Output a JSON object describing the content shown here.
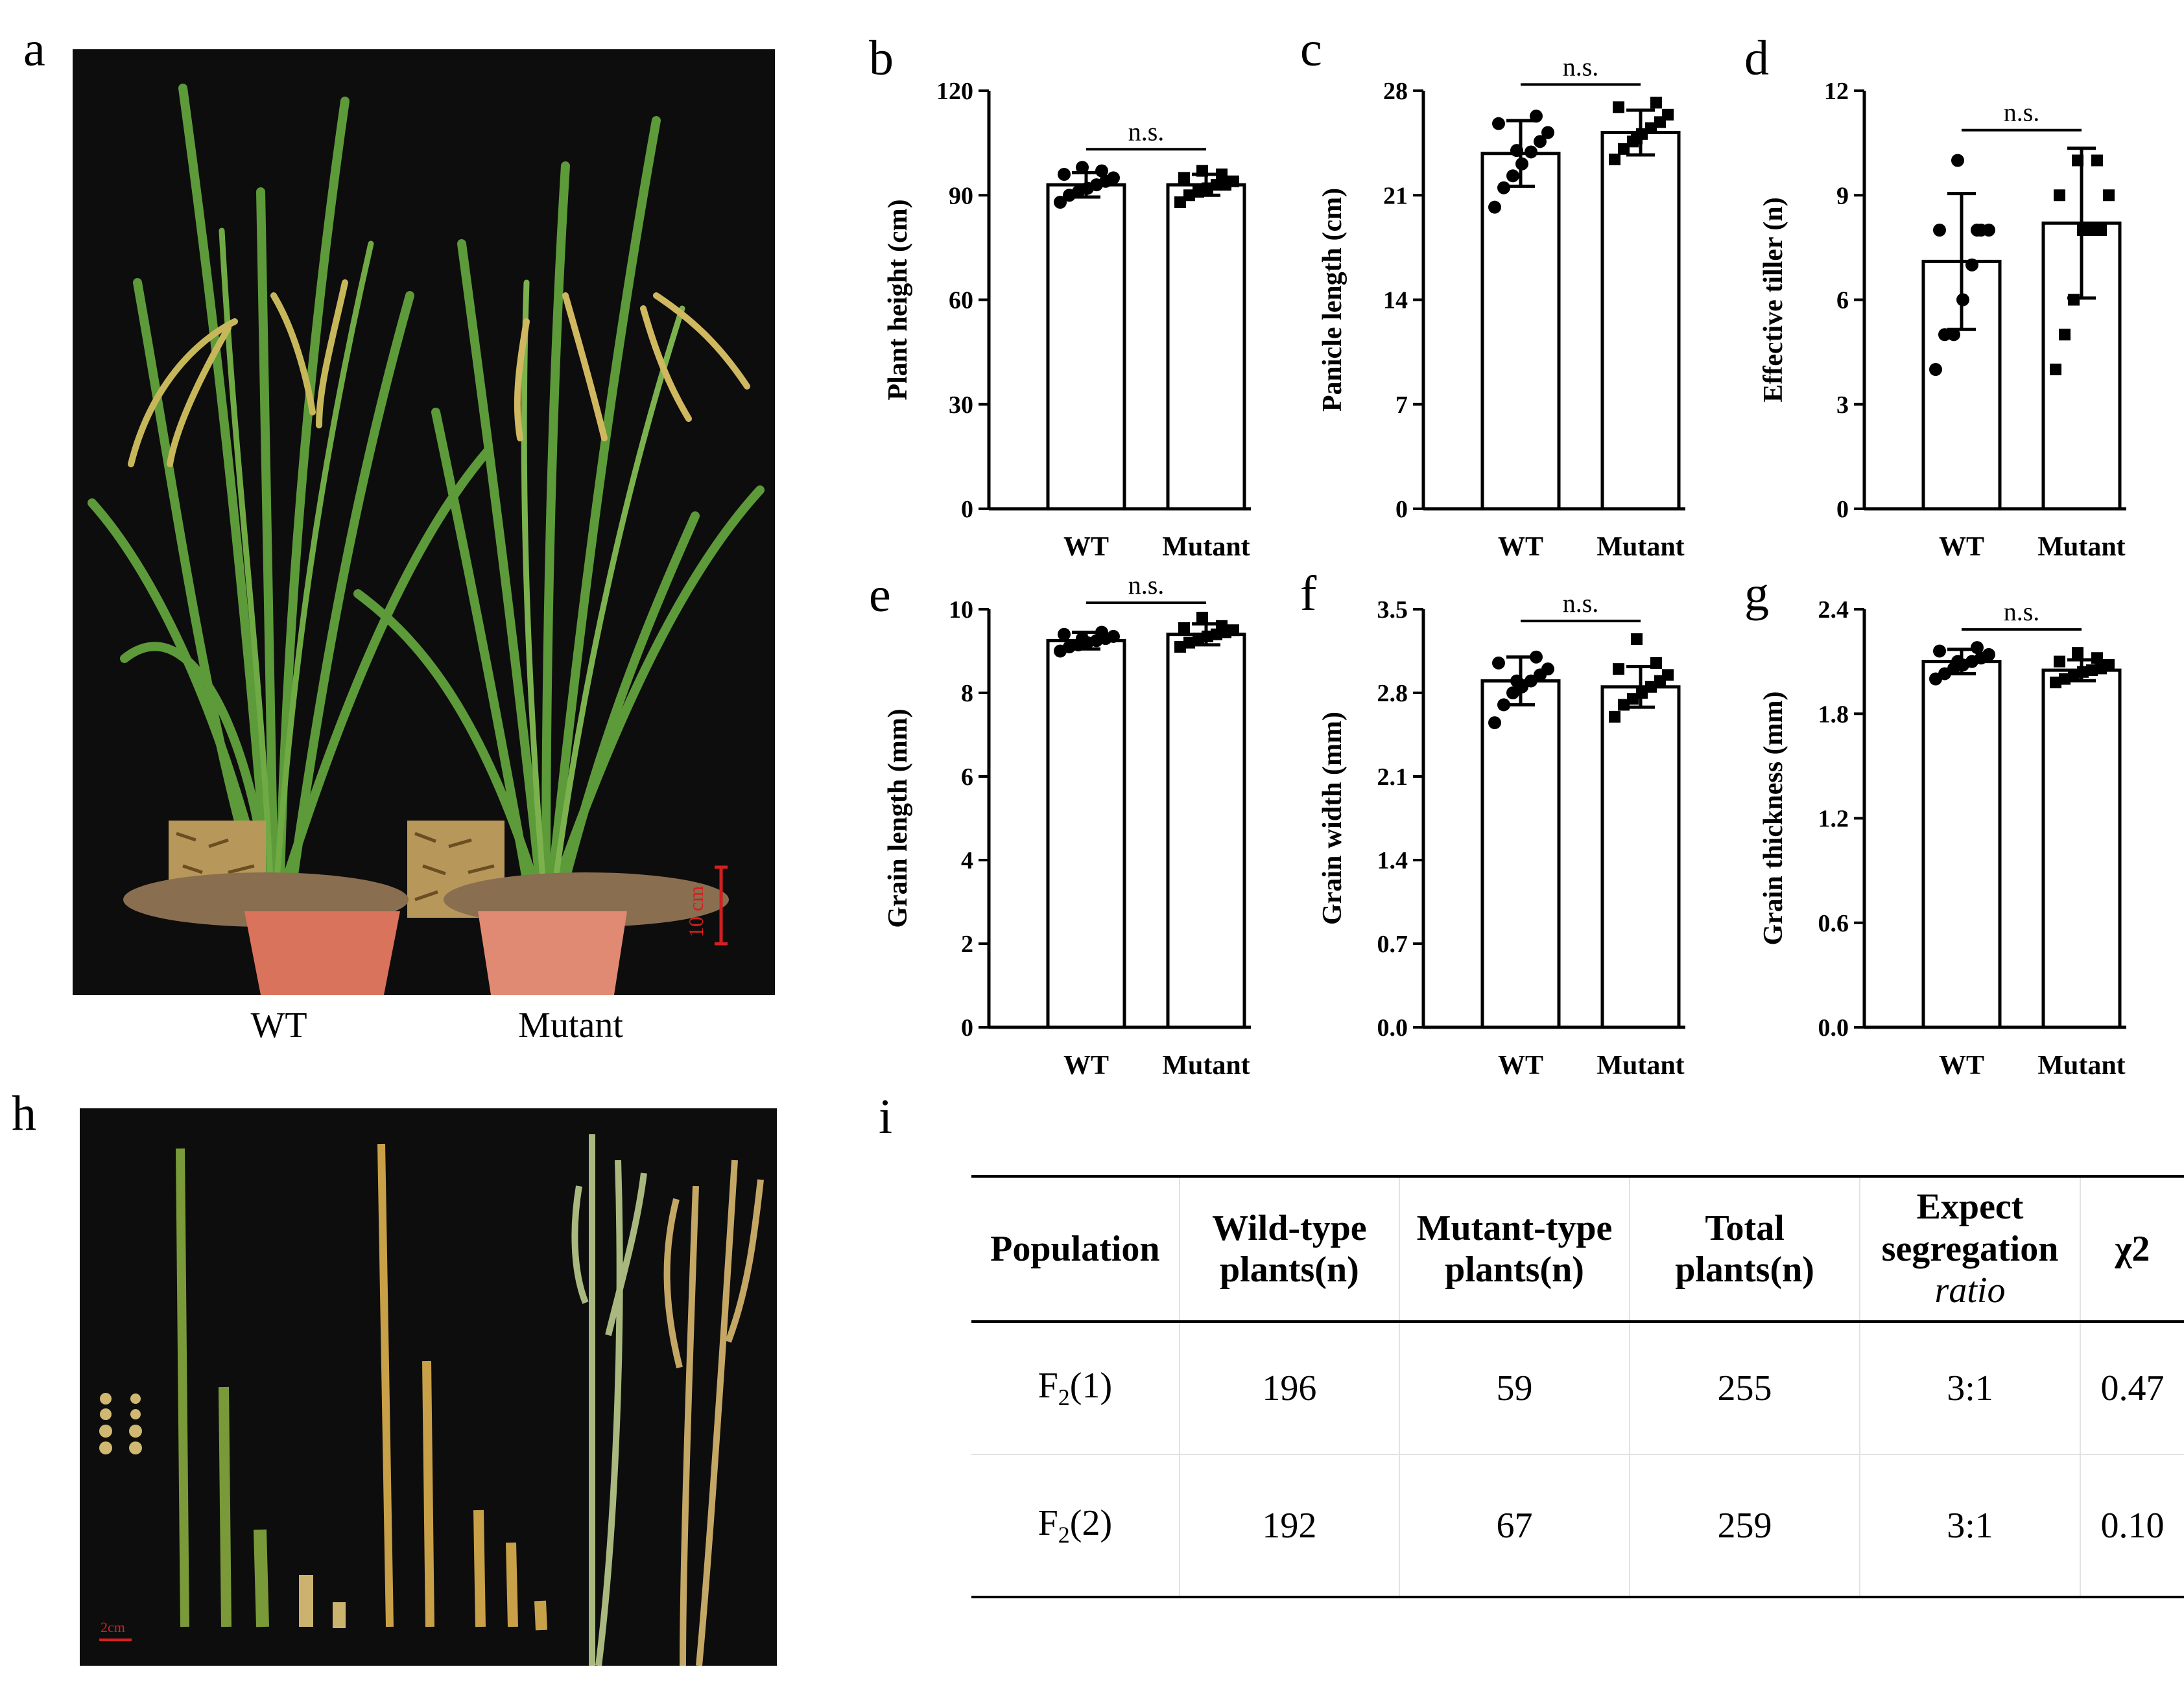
{
  "panel_letters": [
    "a",
    "b",
    "c",
    "d",
    "e",
    "f",
    "g",
    "h",
    "i"
  ],
  "photo_a": {
    "captions": [
      "WT",
      "Mutant"
    ],
    "scale_bar": "10 cm",
    "colors": {
      "background": "#0e0d0d",
      "leaf": "#5d9a3a",
      "panicle": "#c6b85a",
      "pot": "#d9735c",
      "scale": "#d42020"
    }
  },
  "photo_h": {
    "scale_bar": "2cm",
    "colors": {
      "background": "#0e0d0d",
      "green_stem": "#7a9a3a",
      "yellow_stem": "#c8a048",
      "panicle_green": "#a9b87e",
      "panicle_yellow": "#c4a765"
    }
  },
  "chart_data": [
    {
      "panel": "b",
      "type": "bar",
      "categories": [
        "WT",
        "Mutant"
      ],
      "values": [
        93,
        93
      ],
      "errors": [
        3.5,
        3
      ],
      "ylabel": "Plant height (cm)",
      "yticks": [
        "0",
        "30",
        "60",
        "90",
        "120"
      ],
      "ylim": [
        0,
        120
      ],
      "significance": "n.s.",
      "markers": [
        "circle",
        "square"
      ],
      "points": [
        [
          88,
          90,
          91,
          92,
          93,
          94,
          95,
          96,
          97,
          98
        ],
        [
          88,
          90,
          91,
          92,
          93,
          93,
          94,
          95,
          96,
          97
        ]
      ]
    },
    {
      "panel": "c",
      "type": "bar",
      "categories": [
        "WT",
        "Mutant"
      ],
      "values": [
        23.8,
        25.2
      ],
      "errors": [
        2.2,
        1.5
      ],
      "ylabel": "Panicle length (cm)",
      "yticks": [
        "0",
        "7",
        "14",
        "21",
        "28"
      ],
      "ylim": [
        0,
        28
      ],
      "significance": "n.s.",
      "markers": [
        "circle",
        "square"
      ],
      "points": [
        [
          20.2,
          21.5,
          22.3,
          23.1,
          23.9,
          24.6,
          25.2,
          25.8,
          26.3,
          24.0
        ],
        [
          23.4,
          24.1,
          24.6,
          25.1,
          25.5,
          25.9,
          26.4,
          26.9,
          27.2,
          24.8
        ]
      ]
    },
    {
      "panel": "d",
      "type": "bar",
      "categories": [
        "WT",
        "Mutant"
      ],
      "values": [
        7.1,
        8.2
      ],
      "errors": [
        1.95,
        2.15
      ],
      "ylabel": "Effective tiller (n)",
      "yticks": [
        "0",
        "3",
        "6",
        "9",
        "12"
      ],
      "ylim": [
        0,
        12
      ],
      "significance": "n.s.",
      "markers": [
        "circle",
        "square"
      ],
      "points": [
        [
          4,
          5,
          5,
          6,
          7,
          8,
          8,
          8,
          8,
          10
        ],
        [
          4,
          5,
          6,
          8,
          8,
          8,
          9,
          9,
          10,
          10
        ]
      ]
    },
    {
      "panel": "e",
      "type": "bar",
      "categories": [
        "WT",
        "Mutant"
      ],
      "values": [
        9.25,
        9.4
      ],
      "errors": [
        0.2,
        0.25
      ],
      "ylabel": "Grain length (mm)",
      "yticks": [
        "0",
        "2",
        "4",
        "6",
        "8",
        "10"
      ],
      "ylim": [
        0,
        10
      ],
      "significance": "n.s.",
      "markers": [
        "circle",
        "square"
      ],
      "points": [
        [
          9.0,
          9.1,
          9.15,
          9.2,
          9.25,
          9.3,
          9.35,
          9.4,
          9.45,
          9.3
        ],
        [
          9.1,
          9.2,
          9.3,
          9.35,
          9.4,
          9.45,
          9.5,
          9.55,
          9.6,
          9.8
        ]
      ]
    },
    {
      "panel": "f",
      "type": "bar",
      "categories": [
        "WT",
        "Mutant"
      ],
      "values": [
        2.9,
        2.85
      ],
      "errors": [
        0.2,
        0.17
      ],
      "ylabel": "Grain width (mm)",
      "yticks": [
        "0.0",
        "0.7",
        "1.4",
        "2.1",
        "2.8",
        "3.5"
      ],
      "ylim": [
        0,
        3.5
      ],
      "significance": "n.s.",
      "markers": [
        "circle",
        "square"
      ],
      "points": [
        [
          2.55,
          2.7,
          2.8,
          2.85,
          2.9,
          2.95,
          3.0,
          3.05,
          3.1,
          2.9
        ],
        [
          2.6,
          2.7,
          2.75,
          2.8,
          2.85,
          2.9,
          2.95,
          3.0,
          3.05,
          3.25
        ]
      ]
    },
    {
      "panel": "g",
      "type": "bar",
      "categories": [
        "WT",
        "Mutant"
      ],
      "values": [
        2.1,
        2.05
      ],
      "errors": [
        0.07,
        0.06
      ],
      "ylabel": "Grain thickness (mm)",
      "yticks": [
        "0.0",
        "0.6",
        "1.2",
        "1.8",
        "2.4"
      ],
      "ylim": [
        0,
        2.4
      ],
      "significance": "n.s.",
      "markers": [
        "circle",
        "square"
      ],
      "points": [
        [
          2.0,
          2.03,
          2.06,
          2.08,
          2.1,
          2.12,
          2.14,
          2.16,
          2.18,
          2.1
        ],
        [
          1.98,
          2.0,
          2.02,
          2.04,
          2.05,
          2.06,
          2.08,
          2.1,
          2.12,
          2.15
        ]
      ]
    }
  ],
  "table_i": {
    "headers": [
      [
        "Population"
      ],
      [
        "Wild-type",
        "plants(n)"
      ],
      [
        "Mutant-type",
        "plants(n)"
      ],
      [
        "Total",
        "plants(n)"
      ],
      [
        "Expect",
        "segregation",
        "ratio"
      ],
      [
        "χ2"
      ]
    ],
    "rows": [
      {
        "population_base": "F",
        "population_sub": "2",
        "population_suffix": "(1)",
        "wild": "196",
        "mutant": "59",
        "total": "255",
        "ratio": "3:1",
        "chi2": "0.47"
      },
      {
        "population_base": "F",
        "population_sub": "2",
        "population_suffix": "(2)",
        "wild": "192",
        "mutant": "67",
        "total": "259",
        "ratio": "3:1",
        "chi2": "0.10"
      }
    ]
  }
}
